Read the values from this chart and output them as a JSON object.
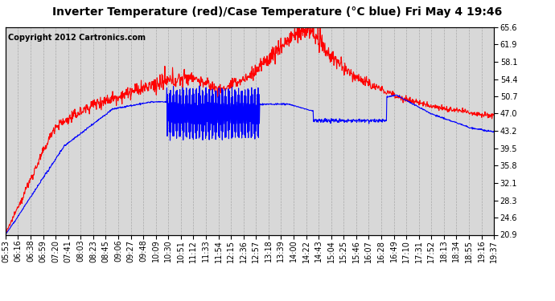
{
  "title": "Inverter Temperature (red)/Case Temperature (°C blue) Fri May 4 19:46",
  "copyright": "Copyright 2012 Cartronics.com",
  "yticks": [
    20.9,
    24.6,
    28.3,
    32.1,
    35.8,
    39.5,
    43.2,
    47.0,
    50.7,
    54.4,
    58.1,
    61.9,
    65.6
  ],
  "ymin": 20.9,
  "ymax": 65.6,
  "xtick_labels": [
    "05:53",
    "06:16",
    "06:38",
    "06:59",
    "07:20",
    "07:41",
    "08:03",
    "08:23",
    "08:45",
    "09:06",
    "09:27",
    "09:48",
    "10:09",
    "10:30",
    "10:51",
    "11:12",
    "11:33",
    "11:54",
    "12:15",
    "12:36",
    "12:57",
    "13:18",
    "13:39",
    "14:00",
    "14:22",
    "14:43",
    "15:04",
    "15:25",
    "15:46",
    "16:07",
    "16:28",
    "16:49",
    "17:10",
    "17:31",
    "17:52",
    "18:13",
    "18:34",
    "18:55",
    "19:16",
    "19:37"
  ],
  "background_color": "#ffffff",
  "plot_bg_color": "#d8d8d8",
  "grid_color": "#aaaaaa",
  "red_color": "#ff0000",
  "blue_color": "#0000ff",
  "title_fontsize": 10,
  "tick_fontsize": 7,
  "copyright_fontsize": 7
}
